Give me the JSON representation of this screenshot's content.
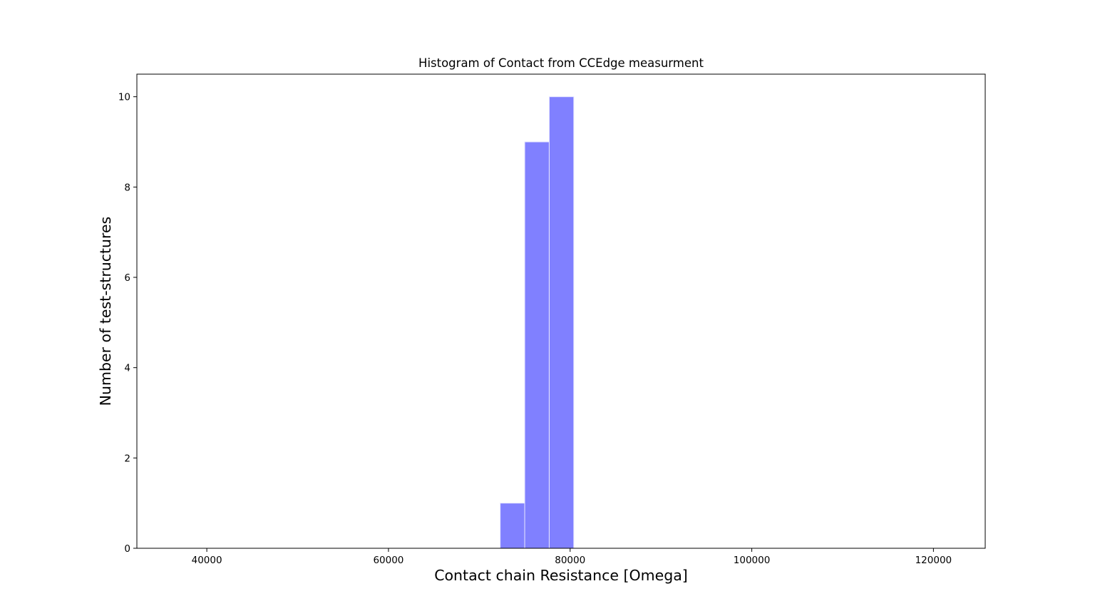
{
  "chart_data": {
    "type": "bar",
    "title": "Histogram of Contact from CCEdge measurment",
    "xlabel": "Contact chain Resistance [Omega]",
    "ylabel": "Number of test-structures",
    "xlim": [
      32300,
      125700
    ],
    "ylim": [
      0,
      10.5
    ],
    "x_ticks": [
      40000,
      60000,
      80000,
      100000,
      120000
    ],
    "x_tick_labels": [
      "40000",
      "60000",
      "80000",
      "100000",
      "120000"
    ],
    "y_ticks": [
      0,
      2,
      4,
      6,
      8,
      10
    ],
    "y_tick_labels": [
      "0",
      "2",
      "4",
      "6",
      "8",
      "10"
    ],
    "bins": [
      {
        "x0": 72300,
        "x1": 75000,
        "count": 1
      },
      {
        "x0": 75000,
        "x1": 77700,
        "count": 9
      },
      {
        "x0": 77700,
        "x1": 80400,
        "count": 10
      }
    ],
    "bar_color": "#8080ff",
    "bar_edge_color": "#e6e6ff",
    "grid": false,
    "legend": "none"
  }
}
